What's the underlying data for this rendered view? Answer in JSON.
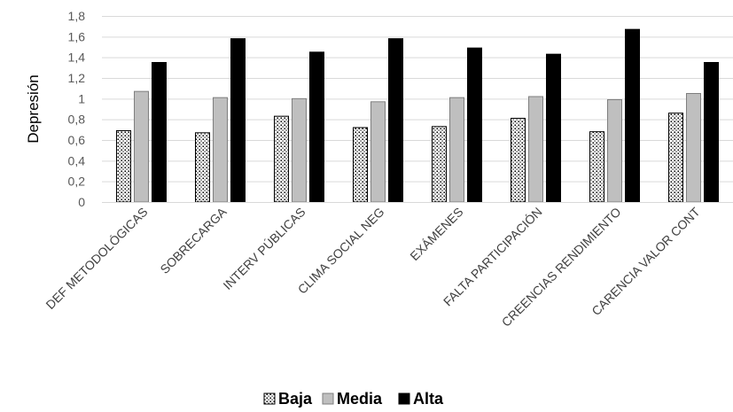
{
  "chart_data": {
    "type": "bar",
    "categories": [
      "DEF METODOLÓGICAS",
      "SOBRECARGA",
      "INTERV PÚBLICAS",
      "CLIMA SOCIAL NEG",
      "EXÁMENES",
      "FALTA PARTICIPACIÓN",
      "CREENCIAS RENDIMIENTO",
      "CARENCIA VALOR CONT"
    ],
    "series": [
      {
        "name": "Baja",
        "values": [
          0.69,
          0.67,
          0.83,
          0.72,
          0.73,
          0.81,
          0.68,
          0.86
        ],
        "color": "#ffffff",
        "pattern": "dotted"
      },
      {
        "name": "Media",
        "values": [
          1.07,
          1.01,
          1.0,
          0.97,
          1.01,
          1.02,
          0.99,
          1.05
        ],
        "color": "#bfbfbf"
      },
      {
        "name": "Alta",
        "values": [
          1.35,
          1.58,
          1.45,
          1.58,
          1.49,
          1.43,
          1.67,
          1.35
        ],
        "color": "#000000"
      }
    ],
    "yticks": [
      "0",
      "0,2",
      "0,4",
      "0,6",
      "0,8",
      "1",
      "1,2",
      "1,4",
      "1,6",
      "1,8"
    ],
    "ylim": [
      0,
      1.8
    ],
    "ylabel": "Depresión",
    "grid": true,
    "legend_position": "bottom"
  }
}
